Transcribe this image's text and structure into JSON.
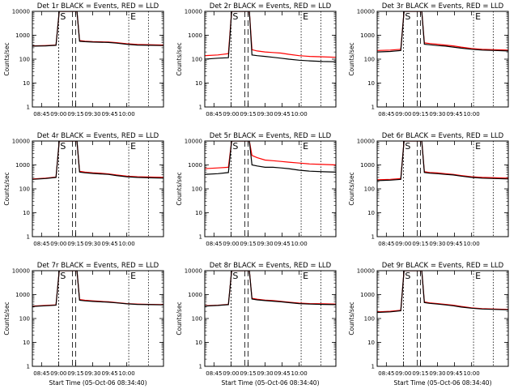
{
  "chart_data": [
    {
      "type": "line",
      "title": "Det 1r  BLACK = Events, RED = LLD",
      "xlabel": "",
      "ylabel": "Counts/sec",
      "x_ticks": [
        "08:45",
        "09:00",
        "09:15",
        "09:30",
        "09:45",
        "10:00"
      ],
      "y_ticks": [
        "1",
        "10",
        "100",
        "1000",
        "10000"
      ],
      "ylim": [
        1,
        10000
      ],
      "y_scale": "log",
      "markers": [
        "S",
        "E"
      ],
      "series": [
        {
          "name": "BLACK = Events",
          "color": "#000000",
          "values": [
            350,
            360,
            380,
            10000,
            10000,
            10000,
            560,
            540,
            520,
            510,
            500,
            470,
            420,
            390,
            380,
            370
          ]
        },
        {
          "name": "RED = LLD",
          "color": "#ff0000",
          "values": [
            360,
            370,
            390,
            10000,
            10000,
            10000,
            600,
            560,
            540,
            530,
            520,
            490,
            440,
            410,
            400,
            390
          ]
        }
      ]
    },
    {
      "type": "line",
      "title": "Det 2r  BLACK = Events, RED = LLD",
      "xlabel": "",
      "ylabel": "Counts/sec",
      "x_ticks": [
        "08:45",
        "09:00",
        "09:15",
        "09:30",
        "09:45",
        "10:00"
      ],
      "y_ticks": [
        "1",
        "10",
        "100",
        "1000",
        "10000"
      ],
      "ylim": [
        1,
        10000
      ],
      "y_scale": "log",
      "markers": [
        "S",
        "E"
      ],
      "series": [
        {
          "name": "BLACK = Events",
          "color": "#000000",
          "values": [
            100,
            110,
            115,
            10000,
            10000,
            10000,
            150,
            140,
            130,
            120,
            110,
            100,
            90,
            85,
            80,
            78
          ]
        },
        {
          "name": "RED = LLD",
          "color": "#ff0000",
          "values": [
            140,
            150,
            170,
            10000,
            10000,
            10000,
            250,
            220,
            200,
            190,
            180,
            160,
            140,
            130,
            125,
            120
          ]
        }
      ]
    },
    {
      "type": "line",
      "title": "Det 3r  BLACK = Events, RED = LLD",
      "xlabel": "",
      "ylabel": "Counts/sec",
      "x_ticks": [
        "08:45",
        "09:00",
        "09:15",
        "09:30",
        "09:45",
        "10:00"
      ],
      "y_ticks": [
        "1",
        "10",
        "100",
        "1000",
        "10000"
      ],
      "ylim": [
        1,
        10000
      ],
      "y_scale": "log",
      "markers": [
        "S",
        "E"
      ],
      "series": [
        {
          "name": "BLACK = Events",
          "color": "#000000",
          "values": [
            200,
            210,
            230,
            10000,
            10000,
            10000,
            420,
            400,
            370,
            350,
            320,
            290,
            260,
            240,
            230,
            220
          ]
        },
        {
          "name": "RED = LLD",
          "color": "#ff0000",
          "values": [
            230,
            240,
            260,
            10000,
            10000,
            10000,
            480,
            450,
            420,
            390,
            360,
            320,
            280,
            260,
            250,
            240
          ]
        }
      ]
    },
    {
      "type": "line",
      "title": "Det 4r  BLACK = Events, RED = LLD",
      "xlabel": "",
      "ylabel": "Counts/sec",
      "x_ticks": [
        "08:45",
        "09:00",
        "09:15",
        "09:30",
        "09:45",
        "10:00"
      ],
      "y_ticks": [
        "1",
        "10",
        "100",
        "1000",
        "10000"
      ],
      "ylim": [
        1,
        10000
      ],
      "y_scale": "log",
      "markers": [
        "S",
        "E"
      ],
      "series": [
        {
          "name": "BLACK = Events",
          "color": "#000000",
          "values": [
            250,
            270,
            300,
            10000,
            10000,
            10000,
            500,
            470,
            440,
            420,
            400,
            360,
            320,
            300,
            290,
            280
          ]
        },
        {
          "name": "RED = LLD",
          "color": "#ff0000",
          "values": [
            260,
            280,
            310,
            10000,
            10000,
            10000,
            540,
            500,
            470,
            450,
            420,
            380,
            340,
            320,
            310,
            300
          ]
        }
      ]
    },
    {
      "type": "line",
      "title": "Det 5r  BLACK = Events, RED = LLD",
      "xlabel": "",
      "ylabel": "Counts/sec",
      "x_ticks": [
        "08:45",
        "09:00",
        "09:15",
        "09:30",
        "09:45",
        "10:00"
      ],
      "y_ticks": [
        "1",
        "10",
        "100",
        "1000",
        "10000"
      ],
      "ylim": [
        1,
        10000
      ],
      "y_scale": "log",
      "markers": [
        "S",
        "E"
      ],
      "series": [
        {
          "name": "BLACK = Events",
          "color": "#000000",
          "values": [
            400,
            430,
            480,
            10000,
            10000,
            10000,
            1000,
            900,
            800,
            800,
            750,
            700,
            600,
            550,
            520,
            500
          ]
        },
        {
          "name": "RED = LLD",
          "color": "#ff0000",
          "values": [
            700,
            750,
            800,
            10000,
            10000,
            10000,
            2500,
            2000,
            1600,
            1500,
            1400,
            1300,
            1200,
            1100,
            1050,
            1000
          ]
        }
      ]
    },
    {
      "type": "line",
      "title": "Det 6r  BLACK = Events, RED = LLD",
      "xlabel": "",
      "ylabel": "Counts/sec",
      "x_ticks": [
        "08:45",
        "09:00",
        "09:15",
        "09:30",
        "09:45",
        "10:00"
      ],
      "y_ticks": [
        "1",
        "10",
        "100",
        "1000",
        "10000"
      ],
      "ylim": [
        1,
        10000
      ],
      "y_scale": "log",
      "markers": [
        "S",
        "E"
      ],
      "series": [
        {
          "name": "BLACK = Events",
          "color": "#000000",
          "values": [
            220,
            230,
            250,
            10000,
            10000,
            10000,
            480,
            450,
            430,
            400,
            380,
            340,
            300,
            280,
            270,
            260
          ]
        },
        {
          "name": "RED = LLD",
          "color": "#ff0000",
          "values": [
            240,
            250,
            270,
            10000,
            10000,
            10000,
            520,
            480,
            460,
            430,
            400,
            360,
            320,
            300,
            290,
            280
          ]
        }
      ]
    },
    {
      "type": "line",
      "title": "Det 7r  BLACK = Events, RED = LLD",
      "xlabel": "Start Time (05-Oct-06 08:34:40)",
      "ylabel": "Counts/sec",
      "x_ticks": [
        "08:45",
        "09:00",
        "09:15",
        "09:30",
        "09:45",
        "10:00"
      ],
      "y_ticks": [
        "1",
        "10",
        "100",
        "1000",
        "10000"
      ],
      "ylim": [
        1,
        10000
      ],
      "y_scale": "log",
      "markers": [
        "S",
        "E"
      ],
      "series": [
        {
          "name": "BLACK = Events",
          "color": "#000000",
          "values": [
            320,
            340,
            360,
            10000,
            10000,
            10000,
            580,
            550,
            520,
            500,
            480,
            450,
            410,
            390,
            380,
            370
          ]
        },
        {
          "name": "RED = LLD",
          "color": "#ff0000",
          "values": [
            330,
            350,
            370,
            10000,
            10000,
            10000,
            620,
            580,
            550,
            520,
            500,
            460,
            420,
            400,
            390,
            380
          ]
        }
      ]
    },
    {
      "type": "line",
      "title": "Det 8r  BLACK = Events, RED = LLD",
      "xlabel": "Start Time (05-Oct-06 08:34:40)",
      "ylabel": "Counts/sec",
      "x_ticks": [
        "08:45",
        "09:00",
        "09:15",
        "09:30",
        "09:45",
        "10:00"
      ],
      "y_ticks": [
        "1",
        "10",
        "100",
        "1000",
        "10000"
      ],
      "ylim": [
        1,
        10000
      ],
      "y_scale": "log",
      "markers": [
        "S",
        "E"
      ],
      "series": [
        {
          "name": "BLACK = Events",
          "color": "#000000",
          "values": [
            330,
            350,
            380,
            10000,
            10000,
            10000,
            650,
            600,
            560,
            530,
            500,
            460,
            420,
            400,
            390,
            380
          ]
        },
        {
          "name": "RED = LLD",
          "color": "#ff0000",
          "values": [
            340,
            360,
            390,
            10000,
            10000,
            10000,
            700,
            640,
            590,
            560,
            520,
            480,
            440,
            420,
            410,
            400
          ]
        }
      ]
    },
    {
      "type": "line",
      "title": "Det 9r  BLACK = Events, RED = LLD",
      "xlabel": "Start Time (05-Oct-06 08:34:40)",
      "ylabel": "Counts/sec",
      "x_ticks": [
        "08:45",
        "09:00",
        "09:15",
        "09:30",
        "09:45",
        "10:00"
      ],
      "y_ticks": [
        "1",
        "10",
        "100",
        "1000",
        "10000"
      ],
      "ylim": [
        1,
        10000
      ],
      "y_scale": "log",
      "markers": [
        "S",
        "E"
      ],
      "series": [
        {
          "name": "BLACK = Events",
          "color": "#000000",
          "values": [
            180,
            190,
            210,
            10000,
            10000,
            10000,
            460,
            430,
            400,
            370,
            340,
            300,
            270,
            250,
            240,
            230
          ]
        },
        {
          "name": "RED = LLD",
          "color": "#ff0000",
          "values": [
            190,
            200,
            220,
            10000,
            10000,
            10000,
            490,
            450,
            420,
            390,
            360,
            320,
            280,
            260,
            250,
            240
          ]
        }
      ]
    }
  ]
}
